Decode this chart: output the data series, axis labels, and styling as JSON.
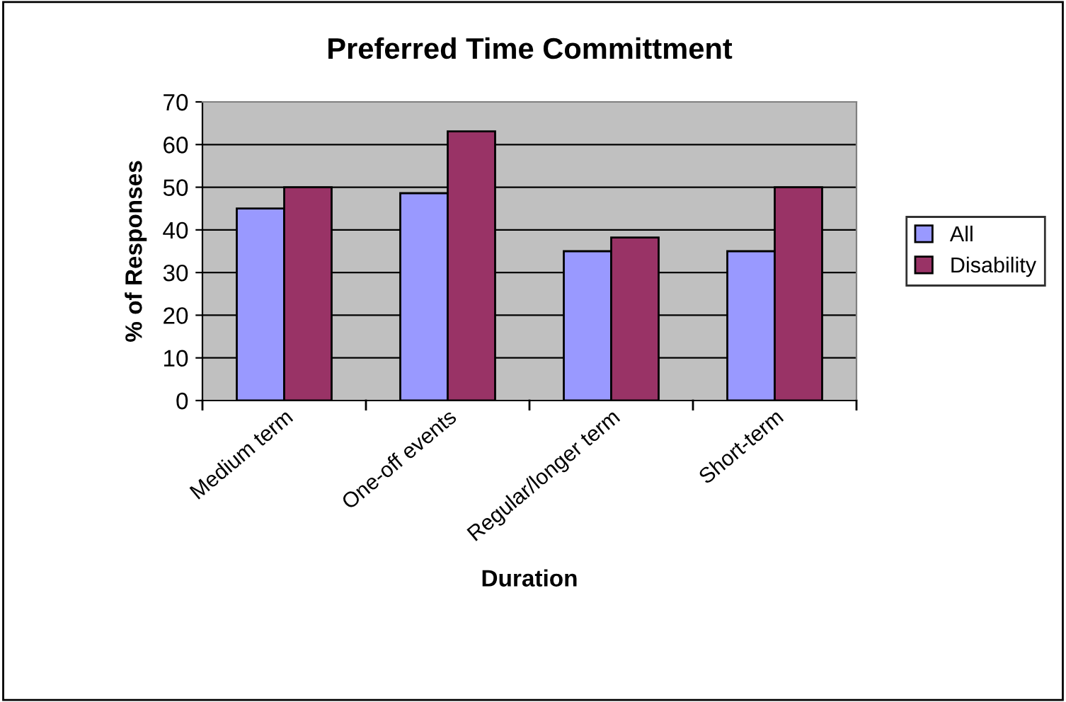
{
  "chart_data": {
    "type": "bar",
    "title": "Preferred Time Committment",
    "xlabel": "Duration",
    "ylabel": "% of Responses",
    "categories": [
      "Medium term",
      "One-off events",
      "Regular/longer term",
      "Short-term"
    ],
    "series": [
      {
        "name": "All",
        "color": "#9999ff",
        "values": [
          45,
          48.6,
          35,
          35
        ]
      },
      {
        "name": "Disability",
        "color": "#993366",
        "values": [
          50,
          63.1,
          38.2,
          50
        ]
      }
    ],
    "ylim": [
      0,
      70
    ],
    "yticks": [
      0,
      10,
      20,
      30,
      40,
      50,
      60,
      70
    ],
    "grid": "y",
    "legend": "right"
  }
}
